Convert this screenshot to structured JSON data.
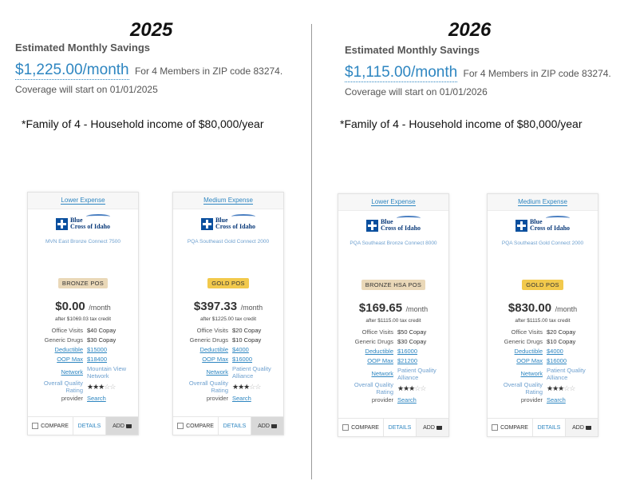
{
  "left": {
    "year": "2025",
    "savings_title": "Estimated Monthly Savings",
    "savings_amount": "$1,225.00/month",
    "savings_detail": "For 4 Members in ZIP code 83274.",
    "coverage_start": "Coverage will start on 01/01/2025",
    "family_note": "*Family of 4 - Household income of $80,000/year"
  },
  "right": {
    "year": "2026",
    "savings_title": "Estimated Monthly Savings",
    "savings_amount": "$1,115.00/month",
    "savings_detail": "For 4 Members in ZIP code 83274.",
    "coverage_start": "Coverage will start on 01/01/2026",
    "family_note": "*Family of 4 - Household income of $80,000/year"
  },
  "labels": {
    "logo_line1": "Blue",
    "logo_line2": "Cross of Idaho",
    "per_month": "/month",
    "office_visits": "Office Visits",
    "generic_drugs": "Generic Drugs",
    "deductible": "Deductible",
    "oop_max": "OOP Max",
    "network": "Network",
    "quality": "Overall Quality Rating",
    "provider": "provider",
    "search": "Search",
    "compare": "COMPARE",
    "details": "DETAILS",
    "add": "ADD"
  },
  "plans": [
    {
      "tier": "Lower Expense",
      "name": "MVN East Bronze Connect 7500",
      "metal": "BRONZE POS",
      "metal_color": "#ead8b8",
      "price": "$0.00",
      "credit": "after $1069.03 tax credit",
      "office_visits": "$40 Copay",
      "generic_drugs": "$30 Copay",
      "deductible": "$15000",
      "oop_max": "$18400",
      "network": "Mountain View Network",
      "rating": 3
    },
    {
      "tier": "Medium Expense",
      "name": "PQA Southeast Gold Connect 2000",
      "metal": "GOLD POS",
      "metal_color": "#f2c94c",
      "price": "$397.33",
      "credit": "after $1225.00 tax credit",
      "office_visits": "$20 Copay",
      "generic_drugs": "$10 Copay",
      "deductible": "$4000",
      "oop_max": "$16000",
      "network": "Patient Quality Alliance",
      "rating": 3
    },
    {
      "tier": "Lower Expense",
      "name": "PQA Southeast Bronze Connect 8000",
      "metal": "BRONZE HSA POS",
      "metal_color": "#ead8b8",
      "price": "$169.65",
      "credit": "after $1115.00 tax credit",
      "office_visits": "$50 Copay",
      "generic_drugs": "$30 Copay",
      "deductible": "$16000",
      "oop_max": "$21200",
      "network": "Patient Quality Alliance",
      "rating": 3
    },
    {
      "tier": "Medium Expense",
      "name": "PQA Southeast Gold Connect 2000",
      "metal": "GOLD POS",
      "metal_color": "#f2c94c",
      "price": "$830.00",
      "credit": "after $1115.00 tax credit",
      "office_visits": "$20 Copay",
      "generic_drugs": "$10 Copay",
      "deductible": "$4000",
      "oop_max": "$16000",
      "network": "Patient Quality Alliance",
      "rating": 3
    }
  ]
}
